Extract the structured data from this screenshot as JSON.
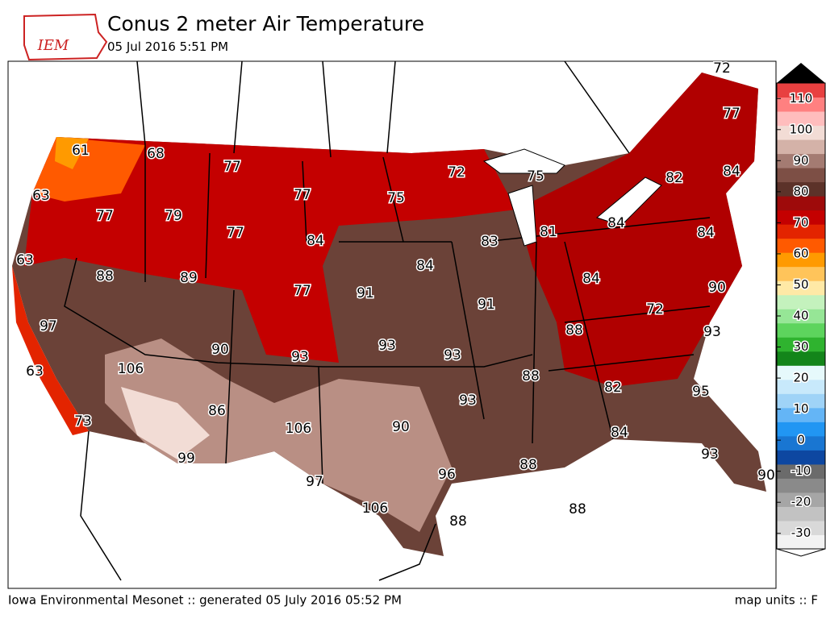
{
  "header": {
    "logo": "IEM",
    "title": "Conus 2 meter Air Temperature",
    "subtitle": "05 Jul 2016 5:51 PM"
  },
  "colorbar": {
    "lim": [
      -35,
      115
    ],
    "ticks": [
      -30,
      -20,
      -10,
      0,
      10,
      20,
      30,
      40,
      50,
      60,
      70,
      80,
      90,
      100,
      110
    ],
    "colors": [
      "#f2f2f2",
      "#d9d9d9",
      "#c2c2c2",
      "#a6a6a6",
      "#8a8a8a",
      "#6b6b6b",
      "#0d47a1",
      "#1976d2",
      "#2196f3",
      "#64b5f6",
      "#9fd3f7",
      "#c8e9fb",
      "#e6f9fb",
      "#13851a",
      "#2fb32f",
      "#5dd45d",
      "#96e696",
      "#c4f2bd",
      "#ffe9a6",
      "#ffc45a",
      "#ff9a00",
      "#ff5a00",
      "#e32400",
      "#c40000",
      "#9e0a0a",
      "#5c3229",
      "#7d4f45",
      "#a47b72",
      "#d4b2a8",
      "#f2dcd5",
      "#ffbdbd",
      "#ff8080",
      "#e84040"
    ]
  },
  "stations": [
    72,
    77,
    61,
    68,
    77,
    72,
    75,
    82,
    84,
    63,
    77,
    75,
    77,
    79,
    84,
    77,
    84,
    83,
    81,
    84,
    63,
    84,
    88,
    89,
    84,
    77,
    91,
    90,
    91,
    72,
    97,
    88,
    93,
    90,
    93,
    93,
    93,
    106,
    63,
    88,
    82,
    95,
    93,
    86,
    73,
    106,
    90,
    84,
    99,
    88,
    93,
    96,
    90,
    97,
    106,
    88,
    88
  ],
  "footer": {
    "left": "Iowa Environmental Mesonet :: generated 05 July 2016 05:52 PM",
    "right": "map units :: F"
  }
}
